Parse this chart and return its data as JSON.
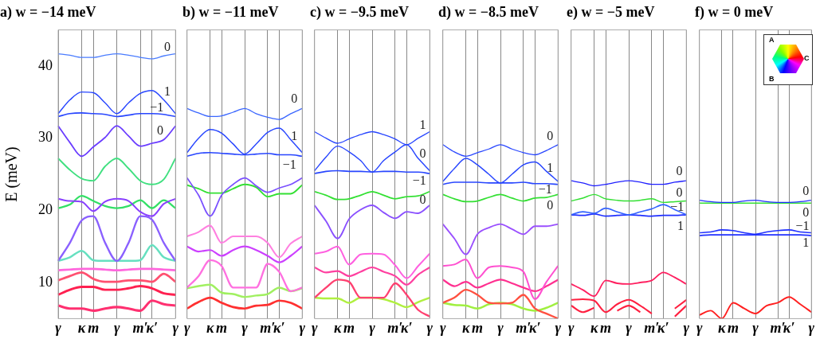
{
  "chart_data": [
    {
      "type": "line",
      "title": "a) w = −14 meV",
      "ylabel": "E (meV)",
      "categories": [
        "γ",
        null,
        "κ",
        "m",
        null,
        "γ",
        null,
        "m′",
        "κ′",
        null,
        "γ"
      ],
      "ylim": [
        5,
        45
      ],
      "yticks": [
        10,
        20,
        30,
        40
      ],
      "grid": "x",
      "legend": false,
      "marker": "none",
      "line_style": "solid",
      "series": [
        {
          "color": "#4a7cff",
          "values": [
            41.7,
            41.5,
            41.2,
            41.2,
            41.5,
            41.7,
            41.5,
            41.2,
            41.0,
            41.4,
            41.7
          ]
        },
        {
          "color": "#2846ff",
          "values": [
            33.4,
            35.3,
            36.4,
            36.3,
            34.9,
            33.4,
            34.9,
            36.2,
            36.6,
            35.3,
            33.4
          ]
        },
        {
          "color": "#2846ff",
          "values": [
            33.0,
            33.4,
            33.5,
            33.4,
            33.3,
            33.0,
            33.2,
            33.4,
            33.4,
            33.3,
            33.0
          ]
        },
        {
          "color": "#6a3cff",
          "values": [
            31.7,
            29.4,
            27.5,
            28.8,
            30.1,
            31.7,
            30.3,
            28.9,
            29.3,
            29.8,
            31.7
          ]
        },
        {
          "color": "#40e080",
          "values": [
            27.2,
            25.6,
            24.4,
            24.1,
            26.1,
            27.2,
            25.8,
            24.1,
            23.6,
            24.3,
            27.2
          ]
        },
        {
          "color": "#8a40ff",
          "values": [
            21.6,
            21.3,
            21.2,
            19.9,
            21.2,
            21.6,
            21.3,
            19.8,
            19.2,
            20.9,
            21.6
          ]
        },
        {
          "color": "#33e066",
          "values": [
            20.3,
            20.8,
            22.0,
            21.3,
            20.6,
            20.3,
            20.6,
            21.4,
            20.3,
            21.4,
            20.3
          ]
        },
        {
          "color": "#8a60ff",
          "values": [
            13.0,
            15.5,
            18.6,
            19.2,
            15.5,
            13.0,
            15.5,
            19.2,
            18.7,
            15.5,
            13.0
          ]
        },
        {
          "color": "#66e0c0",
          "values": [
            13.0,
            13.5,
            14.4,
            13.1,
            13.0,
            13.0,
            13.0,
            13.1,
            15.2,
            13.5,
            13.0
          ]
        },
        {
          "color": "#ff66dd",
          "values": [
            11.7,
            11.8,
            11.9,
            11.9,
            11.8,
            11.7,
            11.8,
            11.9,
            11.9,
            11.8,
            11.7
          ]
        },
        {
          "color": "#ff5070",
          "values": [
            10.3,
            10.9,
            11.4,
            10.5,
            10.1,
            10.1,
            10.3,
            10.3,
            10.1,
            11.2,
            10.1
          ]
        },
        {
          "color": "#ff2050",
          "values": [
            8.3,
            9.0,
            9.4,
            9.4,
            9.0,
            9.0,
            9.2,
            9.5,
            9.2,
            8.5,
            8.3
          ]
        },
        {
          "color": "#ff3070",
          "values": [
            6.8,
            6.4,
            6.4,
            6.1,
            6.4,
            6.6,
            6.4,
            6.1,
            7.5,
            7.0,
            6.8
          ]
        }
      ],
      "annotations": [
        "0",
        "1",
        "−1",
        "0"
      ]
    },
    {
      "type": "line",
      "title": "b) w = −11 meV",
      "categories": [
        "γ",
        null,
        "κ",
        "m",
        null,
        "γ",
        null,
        "m′",
        "κ′",
        null,
        "γ"
      ],
      "ylim": [
        5,
        45
      ],
      "yticks": [
        10,
        20,
        30,
        40
      ],
      "tick_labels": "x",
      "grid": "x",
      "legend": false,
      "marker": "none",
      "line_style": "solid",
      "series": [
        {
          "color": "#3a66ff",
          "values": [
            34.1,
            33.5,
            33.0,
            33.1,
            33.6,
            34.1,
            33.4,
            32.9,
            32.6,
            33.4,
            34.1
          ]
        },
        {
          "color": "#2846ff",
          "values": [
            28.0,
            30.0,
            31.2,
            30.7,
            29.2,
            27.8,
            29.2,
            30.8,
            31.4,
            29.8,
            28.0
          ]
        },
        {
          "color": "#2846ff",
          "values": [
            27.5,
            27.9,
            28.0,
            27.9,
            27.8,
            27.7,
            27.8,
            27.9,
            27.7,
            27.7,
            27.5
          ]
        },
        {
          "color": "#7a50ff",
          "values": [
            24.5,
            22.1,
            19.2,
            22.1,
            23.6,
            24.5,
            23.4,
            22.5,
            23.1,
            23.6,
            24.5
          ]
        },
        {
          "color": "#33e033",
          "values": [
            23.5,
            23.0,
            22.4,
            22.4,
            23.0,
            23.6,
            23.2,
            21.9,
            22.3,
            22.3,
            23.5
          ]
        },
        {
          "color": "#ff80e0",
          "values": [
            16.4,
            17.0,
            17.9,
            15.5,
            16.4,
            16.4,
            16.4,
            15.5,
            13.5,
            15.4,
            16.4
          ]
        },
        {
          "color": "#cc40ff",
          "values": [
            15.0,
            14.3,
            14.5,
            13.7,
            14.5,
            15.0,
            14.5,
            13.7,
            12.8,
            13.7,
            15.0
          ]
        },
        {
          "color": "#ff70e0",
          "values": [
            9.3,
            10.9,
            13.1,
            12.3,
            9.3,
            9.3,
            9.3,
            12.6,
            11.5,
            8.8,
            9.3
          ]
        },
        {
          "color": "#a0f060",
          "values": [
            9.2,
            9.5,
            9.7,
            8.6,
            8.4,
            8.0,
            8.2,
            8.4,
            9.3,
            8.8,
            9.2
          ]
        },
        {
          "color": "#ff3030",
          "values": [
            6.4,
            7.3,
            7.9,
            7.2,
            6.6,
            6.4,
            6.8,
            6.9,
            7.5,
            7.2,
            6.4
          ]
        }
      ],
      "annotations": [
        "0",
        "1",
        "−1"
      ]
    },
    {
      "type": "line",
      "title": "c) w = −9.5 meV",
      "categories": [
        "γ",
        null,
        "κ",
        "m",
        null,
        "γ",
        null,
        "m′",
        "κ′",
        null,
        "γ"
      ],
      "ylim": [
        5,
        45
      ],
      "yticks": [
        10,
        20,
        30,
        40
      ],
      "tick_labels": "x",
      "grid": "x",
      "legend": false,
      "marker": "none",
      "line_style": "solid",
      "series": [
        {
          "color": "#2846ff",
          "values": [
            30.9,
            30.0,
            29.3,
            29.9,
            30.5,
            30.9,
            30.5,
            29.9,
            29.1,
            30.0,
            30.9
          ]
        },
        {
          "color": "#2846ff",
          "values": [
            25.5,
            27.4,
            28.9,
            28.1,
            26.9,
            25.3,
            26.9,
            28.1,
            29.1,
            27.2,
            25.5
          ]
        },
        {
          "color": "#2846ff",
          "values": [
            25.1,
            25.4,
            25.5,
            25.4,
            25.4,
            25.3,
            25.4,
            25.4,
            25.3,
            25.3,
            25.1
          ]
        },
        {
          "color": "#33e033",
          "values": [
            22.6,
            22.1,
            21.5,
            21.6,
            22.1,
            22.6,
            22.1,
            21.6,
            21.9,
            22.0,
            22.6
          ]
        },
        {
          "color": "#8a50ff",
          "values": [
            20.7,
            18.5,
            16.1,
            18.8,
            20.1,
            20.7,
            19.7,
            18.9,
            19.8,
            19.6,
            20.7
          ]
        },
        {
          "color": "#ff60e0",
          "values": [
            14.0,
            14.3,
            15.0,
            12.5,
            13.9,
            14.0,
            13.9,
            12.4,
            10.6,
            12.3,
            14.0
          ]
        },
        {
          "color": "#ff40a0",
          "values": [
            12.1,
            11.4,
            11.6,
            10.9,
            11.5,
            12.1,
            11.5,
            10.9,
            9.7,
            11.1,
            12.1
          ]
        },
        {
          "color": "#ff4070",
          "values": [
            7.9,
            9.3,
            10.4,
            10.1,
            7.9,
            7.9,
            7.9,
            9.9,
            8.3,
            6.2,
            5.3
          ]
        },
        {
          "color": "#b0f040",
          "values": [
            7.9,
            7.8,
            7.8,
            7.2,
            7.9,
            7.9,
            7.7,
            7.2,
            6.6,
            7.3,
            7.9
          ]
        }
      ],
      "annotations": [
        "1",
        "0",
        "−1",
        "0"
      ]
    },
    {
      "type": "line",
      "title": "d) w = −8.5 meV",
      "categories": [
        "γ",
        null,
        "κ",
        "m",
        null,
        "γ",
        null,
        "m′",
        "κ′",
        null,
        "γ"
      ],
      "ylim": [
        5,
        45
      ],
      "yticks": [
        10,
        20,
        30,
        40
      ],
      "tick_labels": "x",
      "grid": "x",
      "legend": false,
      "marker": "none",
      "line_style": "solid",
      "series": [
        {
          "color": "#2846ff",
          "values": [
            29.1,
            28.1,
            27.5,
            28.0,
            28.5,
            29.1,
            28.5,
            28.0,
            27.7,
            28.3,
            29.1
          ]
        },
        {
          "color": "#2846ff",
          "values": [
            24.0,
            25.8,
            27.2,
            26.3,
            25.0,
            23.8,
            25.0,
            26.3,
            26.7,
            25.4,
            24.0
          ]
        },
        {
          "color": "#2846ff",
          "values": [
            23.6,
            23.9,
            23.9,
            23.9,
            23.8,
            23.8,
            23.8,
            23.9,
            23.7,
            23.7,
            23.6
          ]
        },
        {
          "color": "#33e033",
          "values": [
            22.2,
            21.6,
            21.2,
            21.3,
            21.8,
            22.2,
            21.7,
            21.3,
            21.7,
            21.8,
            22.2
          ]
        },
        {
          "color": "#9a50ff",
          "values": [
            18.1,
            16.1,
            13.9,
            16.7,
            17.6,
            18.1,
            17.4,
            16.7,
            17.8,
            17.8,
            18.1
          ]
        },
        {
          "color": "#ff50d0",
          "values": [
            12.3,
            12.5,
            13.2,
            10.6,
            12.1,
            12.3,
            12.1,
            11.5,
            7.7,
            10.1,
            12.3
          ]
        },
        {
          "color": "#ff3090",
          "values": [
            10.4,
            9.5,
            10.1,
            9.3,
            9.9,
            10.4,
            9.9,
            9.3,
            8.8,
            9.5,
            10.4
          ]
        },
        {
          "color": "#ff5040",
          "values": [
            7.2,
            7.9,
            9.0,
            8.3,
            7.2,
            7.1,
            7.2,
            8.3,
            6.4,
            5.7,
            5.0
          ]
        },
        {
          "color": "#a0f040",
          "values": [
            7.2,
            6.9,
            6.8,
            6.4,
            7.0,
            7.2,
            7.0,
            6.4,
            6.1,
            6.5,
            7.2
          ]
        }
      ],
      "annotations": [
        "0",
        "1",
        "−1",
        "0"
      ]
    },
    {
      "type": "line",
      "title": "e) w = −5 meV",
      "categories": [
        "γ",
        null,
        "κ",
        "m",
        null,
        "γ",
        null,
        "m′",
        "κ′",
        null,
        "γ"
      ],
      "ylim": [
        5,
        45
      ],
      "yticks": [
        10,
        20,
        30,
        40
      ],
      "tick_labels": "x",
      "grid": "x",
      "legend": false,
      "marker": "none",
      "line_style": "solid",
      "series": [
        {
          "color": "#2020ff",
          "values": [
            24.1,
            23.8,
            23.4,
            23.6,
            23.9,
            24.1,
            23.9,
            23.6,
            23.6,
            23.9,
            24.1
          ]
        },
        {
          "color": "#33e033",
          "values": [
            21.3,
            21.7,
            22.2,
            21.6,
            21.4,
            21.3,
            21.4,
            21.6,
            21.1,
            21.2,
            21.3
          ]
        },
        {
          "color": "#3060ff",
          "values": [
            19.4,
            19.8,
            19.6,
            20.3,
            19.8,
            19.4,
            19.8,
            20.2,
            20.8,
            20.1,
            19.4
          ]
        },
        {
          "color": "#2030ff",
          "values": [
            19.4,
            19.3,
            19.5,
            19.2,
            19.3,
            19.4,
            19.3,
            19.2,
            19.3,
            19.3,
            19.4
          ]
        },
        {
          "color": "#ff2060",
          "values": [
            9.8,
            9.0,
            8.1,
            10.3,
            9.9,
            9.8,
            10.0,
            10.3,
            11.4,
            10.7,
            9.8
          ]
        },
        {
          "color": "#ff2040",
          "values": [
            7.6,
            7.7,
            7.5,
            5.9,
            7.0,
            7.6,
            6.8,
            5.7,
            null,
            6.4,
            7.6
          ]
        },
        {
          "color": "#ff2040",
          "values": [
            6.8,
            5.9,
            6.5,
            null,
            6.1,
            6.8,
            5.9,
            null,
            null,
            5.3,
            6.8
          ]
        }
      ],
      "annotations": [
        "0",
        "0",
        "−1",
        "1"
      ]
    },
    {
      "type": "line",
      "title": "f) w = 0 meV",
      "categories": [
        "γ",
        null,
        "κ",
        "m",
        null,
        "γ",
        null,
        "m′",
        "κ′",
        null,
        "γ"
      ],
      "ylim": [
        5,
        45
      ],
      "yticks": [
        10,
        20,
        30,
        40
      ],
      "tick_labels": "x",
      "grid": "x",
      "legend": false,
      "marker": "none",
      "line_style": "solid",
      "series": [
        {
          "color": "#2030ff",
          "values": [
            21.4,
            21.2,
            21.1,
            21.1,
            21.3,
            21.4,
            21.2,
            21.1,
            21.1,
            21.2,
            21.4
          ]
        },
        {
          "color": "#33e033",
          "values": [
            21.0,
            21.0,
            21.0,
            21.0,
            21.0,
            21.0,
            21.0,
            21.0,
            21.0,
            21.0,
            21.0
          ]
        },
        {
          "color": "#2030ff",
          "values": [
            16.9,
            17.0,
            17.3,
            17.2,
            16.9,
            16.7,
            17.0,
            17.2,
            17.3,
            17.0,
            16.9
          ]
        },
        {
          "color": "#2030ff",
          "values": [
            16.5,
            16.6,
            16.6,
            16.6,
            16.6,
            16.6,
            16.6,
            16.6,
            16.6,
            16.6,
            16.5
          ]
        },
        {
          "color": "#ff2020",
          "values": [
            5.5,
            6.1,
            5.0,
            7.2,
            6.4,
            5.7,
            6.8,
            7.2,
            8.0,
            7.0,
            5.9
          ]
        }
      ],
      "annotations": [
        "0",
        "0",
        "−1",
        "1",
        "A",
        "B",
        "C"
      ]
    }
  ]
}
